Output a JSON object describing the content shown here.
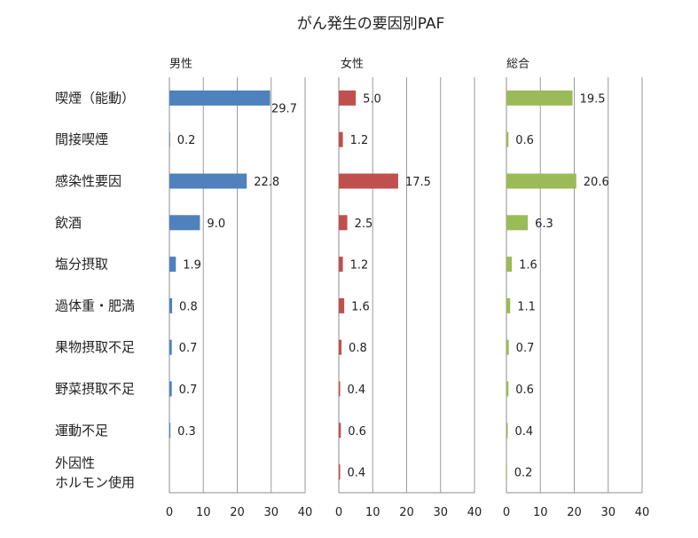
{
  "chart_data": {
    "type": "bar",
    "orientation": "horizontal",
    "title": "がん発生の要因別PAF",
    "categories": [
      "喫煙（能動）",
      "間接喫煙",
      "感染性要因",
      "飲酒",
      "塩分摂取",
      "過体重・肥満",
      "果物摂取不足",
      "野菜摂取不足",
      "運動不足",
      "外因性ホルモン使用"
    ],
    "category_lines": [
      [
        "喫煙（能動）"
      ],
      [
        "間接喫煙"
      ],
      [
        "感染性要因"
      ],
      [
        "飲酒"
      ],
      [
        "塩分摂取"
      ],
      [
        "過体重・肥満"
      ],
      [
        "果物摂取不足"
      ],
      [
        "野菜摂取不足"
      ],
      [
        "運動不足"
      ],
      [
        "外因性",
        "ホルモン使用"
      ]
    ],
    "series": [
      {
        "name": "男性",
        "color": "#4f81bd",
        "values": [
          29.7,
          0.2,
          22.8,
          9.0,
          1.9,
          0.8,
          0.7,
          0.7,
          0.3,
          null
        ],
        "labels": [
          "29.7",
          "0.2",
          "22.8",
          "9.0",
          "1.9",
          "0.8",
          "0.7",
          "0.7",
          "0.3",
          null
        ]
      },
      {
        "name": "女性",
        "color": "#c0504d",
        "values": [
          5.0,
          1.2,
          17.5,
          2.5,
          1.2,
          1.6,
          0.8,
          0.4,
          0.6,
          0.4
        ],
        "labels": [
          "5.0",
          "1.2",
          "17.5",
          "2.5",
          "1.2",
          "1.6",
          "0.8",
          "0.4",
          "0.6",
          "0.4"
        ]
      },
      {
        "name": "総合",
        "color": "#9bbb59",
        "values": [
          19.5,
          0.6,
          20.6,
          6.3,
          1.6,
          1.1,
          0.7,
          0.6,
          0.4,
          0.2
        ],
        "labels": [
          "19.5",
          "0.6",
          "20.6",
          "6.3",
          "1.6",
          "1.1",
          "0.7",
          "0.6",
          "0.4",
          "0.2"
        ]
      }
    ],
    "xlim": [
      0,
      40
    ],
    "xticks": [
      "0",
      "10",
      "20",
      "30",
      "40"
    ],
    "grid": true,
    "gridline_color": "#9a9a9a",
    "frame_color": "#8c8c8c"
  }
}
